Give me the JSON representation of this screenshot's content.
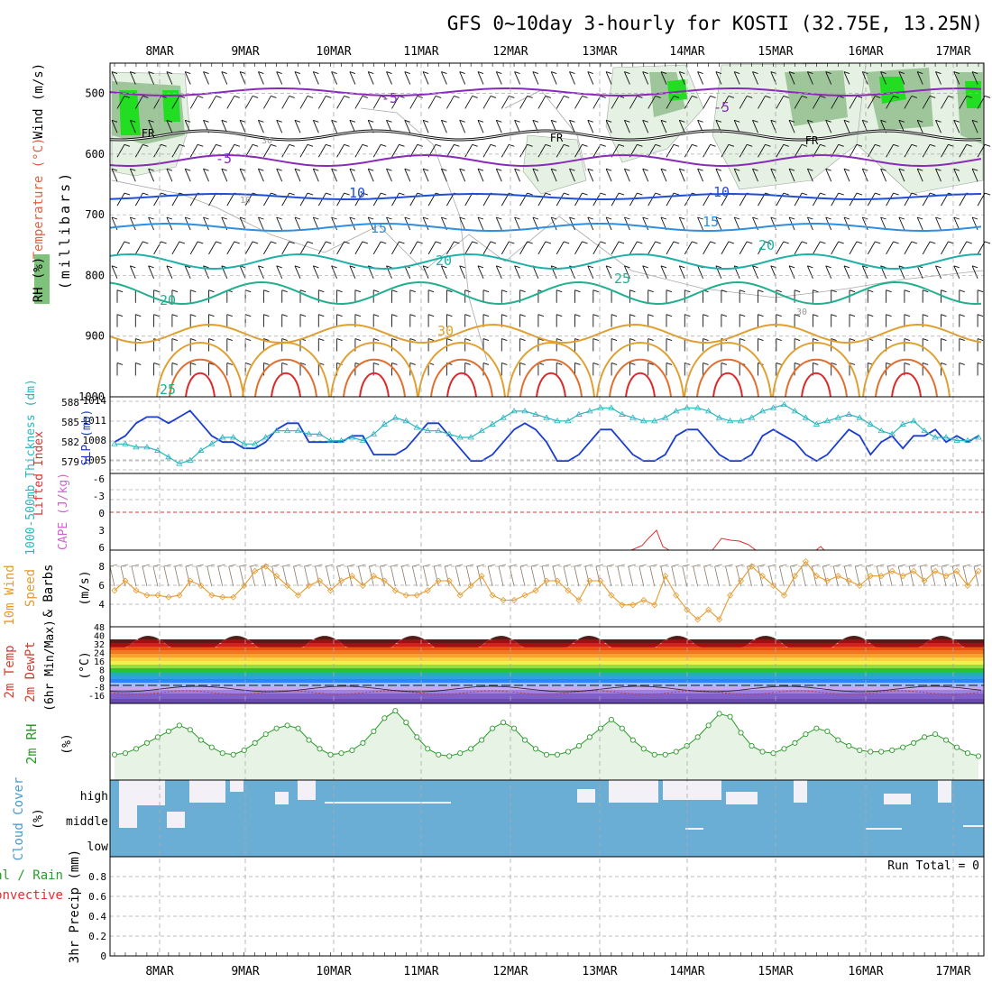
{
  "title": "GFS 0~10day 3-hourly for KOSTI (32.75E, 13.25N)",
  "dates": [
    "8MAR",
    "9MAR",
    "10MAR",
    "11MAR",
    "12MAR",
    "13MAR",
    "14MAR",
    "15MAR",
    "16MAR",
    "17MAR"
  ],
  "colors": {
    "grid": "#aaaaaa",
    "slp": "#1a3ccf",
    "thickness": "#2ab5bf",
    "wind_speed": "#e69a2e",
    "rh": "#2a9a2a",
    "rh_fill": "#e7f3e5",
    "cloud": "#6aaed6",
    "cloud_gap": "#f4f0f8",
    "li_zero": "#e03030",
    "cape": "#cc66cc",
    "dewpoint": "#c04040"
  },
  "panels": {
    "upper_air": {
      "ylabel_units": "(millibars)",
      "label_wind": "Wind (m/s)",
      "label_temp": "Temperature (°C)",
      "label_rh": "RH (%)",
      "yticks": [
        "500",
        "600",
        "700",
        "800",
        "900",
        "1000"
      ],
      "freezing_label": "FR",
      "contour_labels": [
        "-5",
        "-5",
        "-5",
        "10",
        "10",
        "15",
        "15",
        "20",
        "20",
        "25",
        "20",
        "30",
        "25",
        "10",
        "30",
        "30"
      ]
    },
    "slp_thickness": {
      "label_thickness": "1000-500mb Thickness (dm)",
      "label_slp": "SLP (mb)",
      "left_ticks": [
        "588",
        "585",
        "582",
        "579"
      ],
      "right_ticks": [
        "1014",
        "1011",
        "1008",
        "1005"
      ]
    },
    "stability": {
      "label_li": "Lifted Index",
      "label_cape": "CAPE (J/kg)",
      "left_ticks": [
        "-6",
        "-3",
        "0",
        "3",
        "6"
      ]
    },
    "wind10m": {
      "label_a": "10m Wind",
      "label_b": "Speed",
      "label_c": "& Barbs",
      "units": "(m/s)",
      "yticks": [
        "8",
        "6",
        "4"
      ]
    },
    "temp2m": {
      "label_a": "2m Temp",
      "label_b": "2m DewPt",
      "label_c": "(6hr Min/Max)",
      "units": "(°C)",
      "yticks": [
        "48",
        "40",
        "32",
        "24",
        "16",
        "8",
        "0",
        "-8",
        "-16"
      ]
    },
    "rh2m": {
      "label": "2m RH",
      "units": "(%)"
    },
    "cloud": {
      "label": "Cloud Cover",
      "units": "(%)",
      "levels": [
        "high",
        "middle",
        "low"
      ]
    },
    "precip": {
      "label_a": "Total / Rain",
      "label_b": "Convective",
      "label_c": "3hr Precip (mm)",
      "run_total": "Run Total = 0",
      "yticks": [
        "0.8",
        "0.6",
        "0.4",
        "0.2",
        "0"
      ]
    }
  },
  "chart_data": [
    {
      "type": "line",
      "title": "1000-500mb Thickness (dm) / SLP (mb)",
      "x": "3-hourly steps from 7MAR 15Z to 17MAR 15Z",
      "series": [
        {
          "name": "SLP (mb)",
          "values": [
            1008,
            1009,
            1011,
            1012,
            1012,
            1011,
            1012,
            1013,
            1011,
            1009,
            1008,
            1008,
            1007,
            1007,
            1008,
            1010,
            1011,
            1011,
            1008,
            1008,
            1008,
            1008,
            1009,
            1009,
            1006,
            1006,
            1006,
            1007,
            1009,
            1011,
            1011,
            1009,
            1007,
            1005,
            1005,
            1006,
            1008,
            1010,
            1011,
            1010,
            1008,
            1005,
            1005,
            1006,
            1008,
            1010,
            1010,
            1008,
            1006,
            1005,
            1005,
            1006,
            1009,
            1010,
            1010,
            1008,
            1006,
            1005,
            1005,
            1006,
            1009,
            1010,
            1009,
            1008,
            1006,
            1005,
            1006,
            1008,
            1010,
            1009,
            1006,
            1008,
            1009,
            1007,
            1009,
            1009,
            1010,
            1008,
            1009,
            1008,
            1009
          ]
        },
        {
          "name": "1000-500mb Thickness (dm)",
          "values": [
            581.5,
            581.5,
            581.0,
            581.0,
            580.5,
            579.5,
            578.5,
            579.0,
            580.5,
            581.5,
            582.5,
            582.5,
            581.5,
            581.5,
            582.5,
            583.5,
            583.5,
            583.5,
            583.0,
            583.0,
            582.0,
            582.0,
            582.5,
            582.0,
            583.0,
            584.5,
            585.5,
            585.0,
            584.0,
            583.5,
            583.5,
            583.0,
            582.5,
            582.5,
            583.5,
            584.5,
            585.5,
            586.5,
            586.5,
            586.0,
            585.5,
            585.0,
            585.0,
            586.0,
            586.5,
            587.0,
            587.0,
            586.0,
            585.5,
            585.0,
            585.0,
            585.5,
            586.5,
            587.0,
            587.0,
            586.5,
            585.5,
            585.0,
            585.0,
            585.5,
            586.5,
            587.0,
            587.5,
            586.5,
            585.5,
            584.5,
            585.0,
            585.5,
            586.0,
            585.5,
            584.5,
            583.5,
            583.0,
            584.5,
            585.0,
            583.5,
            582.5,
            582.5,
            582.0,
            582.0,
            582.5
          ]
        }
      ],
      "ylim_left": [
        577,
        588
      ],
      "ylim_right": [
        1003,
        1014
      ]
    },
    {
      "type": "line",
      "title": "10m Wind Speed (m/s)",
      "x": "3-hourly steps from 7MAR 15Z to 17MAR 15Z",
      "series": [
        {
          "name": "10m Wind Speed",
          "values": [
            5.5,
            6.5,
            5.5,
            5.0,
            5.0,
            4.8,
            5.0,
            6.5,
            6.0,
            5.0,
            4.8,
            4.8,
            6.0,
            7.5,
            8.0,
            7.0,
            6.0,
            5.0,
            6.0,
            6.5,
            5.5,
            6.5,
            7.0,
            6.0,
            7.0,
            6.5,
            5.5,
            5.0,
            5.0,
            5.5,
            6.5,
            6.5,
            5.0,
            6.0,
            7.0,
            5.0,
            4.5,
            4.5,
            5.0,
            5.5,
            6.5,
            6.5,
            5.5,
            4.5,
            6.5,
            6.5,
            5.0,
            4.0,
            4.0,
            4.5,
            4.0,
            7.0,
            5.0,
            3.5,
            2.5,
            3.5,
            2.5,
            5.0,
            6.5,
            8.0,
            7.0,
            6.0,
            5.0,
            7.0,
            8.5,
            7.0,
            6.5,
            7.0,
            6.5,
            6.0,
            7.0,
            7.0,
            7.5,
            7.0,
            7.5,
            6.5,
            7.5,
            7.0,
            7.5,
            6.0,
            7.5
          ]
        }
      ],
      "ylim": [
        2,
        9
      ]
    },
    {
      "type": "line",
      "title": "2m RH (%)",
      "x": "3-hourly steps from 7MAR 15Z to 17MAR 15Z",
      "series": [
        {
          "name": "2m RH",
          "values": [
            10,
            11,
            14,
            18,
            22,
            26,
            30,
            27,
            20,
            15,
            11,
            10,
            13,
            18,
            24,
            28,
            30,
            28,
            20,
            14,
            10,
            11,
            13,
            18,
            26,
            35,
            40,
            32,
            22,
            14,
            10,
            9,
            11,
            14,
            20,
            28,
            32,
            28,
            20,
            14,
            10,
            10,
            12,
            16,
            22,
            28,
            34,
            28,
            20,
            14,
            10,
            10,
            12,
            16,
            22,
            30,
            38,
            36,
            25,
            16,
            12,
            11,
            14,
            18,
            24,
            28,
            26,
            20,
            16,
            13,
            12,
            12,
            13,
            15,
            18,
            22,
            24,
            20,
            15,
            11,
            9
          ]
        }
      ],
      "ylim": [
        0,
        50
      ]
    },
    {
      "type": "line",
      "title": "3hr Precip (mm)",
      "x": "3-hourly steps from 7MAR 15Z to 17MAR 15Z",
      "series": [
        {
          "name": "Total / Rain",
          "values": [
            0,
            0,
            0,
            0,
            0,
            0,
            0,
            0,
            0,
            0,
            0,
            0,
            0,
            0,
            0,
            0,
            0,
            0,
            0,
            0,
            0,
            0,
            0,
            0,
            0,
            0,
            0,
            0,
            0,
            0,
            0,
            0,
            0,
            0,
            0,
            0,
            0,
            0,
            0,
            0,
            0,
            0,
            0,
            0,
            0,
            0,
            0,
            0,
            0,
            0,
            0,
            0,
            0,
            0,
            0,
            0,
            0,
            0,
            0,
            0,
            0,
            0,
            0,
            0,
            0,
            0,
            0,
            0,
            0,
            0,
            0,
            0,
            0,
            0,
            0,
            0,
            0,
            0,
            0,
            0,
            0
          ]
        }
      ],
      "ylim": [
        0,
        1
      ]
    }
  ]
}
